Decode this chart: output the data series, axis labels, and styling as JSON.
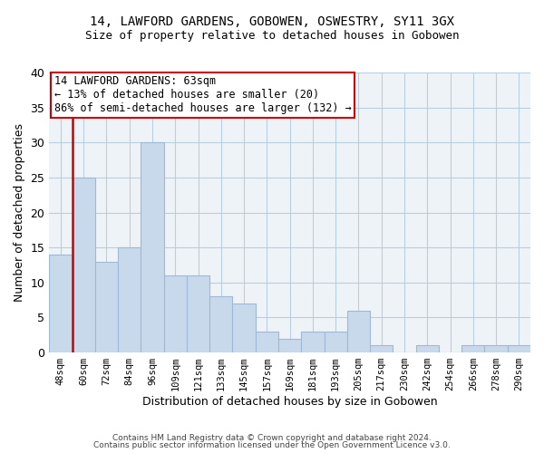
{
  "title1": "14, LAWFORD GARDENS, GOBOWEN, OSWESTRY, SY11 3GX",
  "title2": "Size of property relative to detached houses in Gobowen",
  "xlabel": "Distribution of detached houses by size in Gobowen",
  "ylabel": "Number of detached properties",
  "categories": [
    "48sqm",
    "60sqm",
    "72sqm",
    "84sqm",
    "96sqm",
    "109sqm",
    "121sqm",
    "133sqm",
    "145sqm",
    "157sqm",
    "169sqm",
    "181sqm",
    "193sqm",
    "205sqm",
    "217sqm",
    "230sqm",
    "242sqm",
    "254sqm",
    "266sqm",
    "278sqm",
    "290sqm"
  ],
  "values": [
    14,
    25,
    13,
    15,
    30,
    11,
    11,
    8,
    7,
    3,
    2,
    3,
    3,
    6,
    1,
    0,
    1,
    0,
    1,
    1,
    1
  ],
  "bar_color": "#c9d9ec",
  "bar_edge_color": "#a0b8d8",
  "annotation_text": "14 LAWFORD GARDENS: 63sqm\n← 13% of detached houses are smaller (20)\n86% of semi-detached houses are larger (132) →",
  "annotation_box_color": "#ffffff",
  "annotation_box_edge_color": "#cc0000",
  "red_line_color": "#cc0000",
  "ylim": [
    0,
    40
  ],
  "yticks": [
    0,
    5,
    10,
    15,
    20,
    25,
    30,
    35,
    40
  ],
  "grid_color": "#b8cfe0",
  "bg_color": "#eef3f8",
  "footer1": "Contains HM Land Registry data © Crown copyright and database right 2024.",
  "footer2": "Contains public sector information licensed under the Open Government Licence v3.0."
}
